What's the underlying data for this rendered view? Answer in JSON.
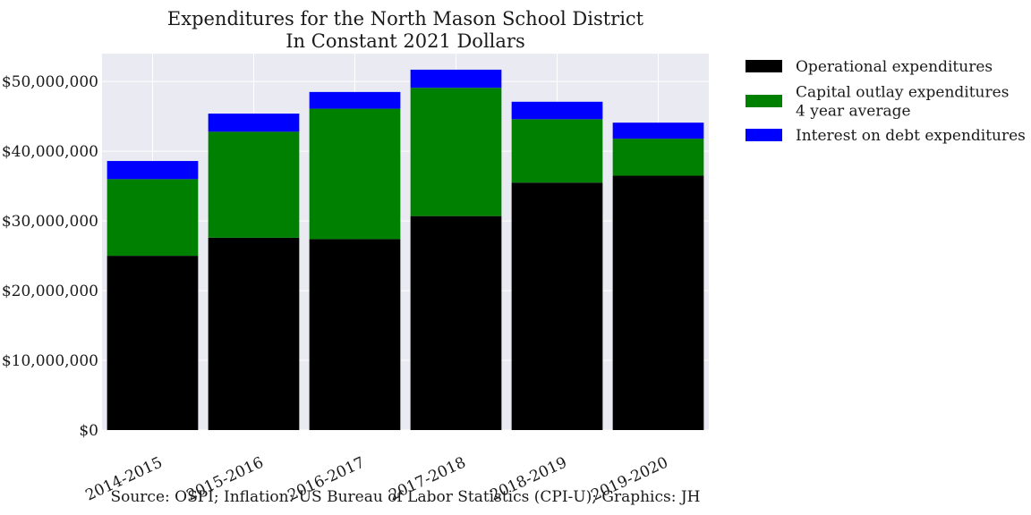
{
  "chart_data": {
    "type": "bar",
    "stacked": true,
    "title": "Expenditures for the North Mason School District",
    "subtitle": "In Constant 2021 Dollars",
    "xlabel": "",
    "ylabel": "",
    "categories": [
      "2014-2015",
      "2015-2016",
      "2016-2017",
      "2017-2018",
      "2018-2019",
      "2019-2020"
    ],
    "series": [
      {
        "name": "Operational expenditures",
        "color": "#000000",
        "values": [
          25000000,
          27600000,
          27400000,
          30700000,
          35500000,
          36500000
        ]
      },
      {
        "name_lines": [
          "Capital outlay expenditures",
          "4 year average"
        ],
        "color": "#008000",
        "values": [
          11000000,
          15200000,
          18700000,
          18400000,
          9100000,
          5300000
        ]
      },
      {
        "name": "Interest on debt expenditures",
        "color": "#0000ff",
        "values": [
          2600000,
          2600000,
          2400000,
          2600000,
          2500000,
          2300000
        ]
      }
    ],
    "ylim": [
      0,
      54000000
    ],
    "yticks": [
      0,
      10000000,
      20000000,
      30000000,
      40000000,
      50000000
    ],
    "ytick_labels": [
      "$0",
      "$10,000,000",
      "$20,000,000",
      "$30,000,000",
      "$40,000,000",
      "$50,000,000"
    ],
    "grid": true,
    "legend_position": "outside-right-top",
    "plot_background": "#eaeaf2",
    "source": "Source: OSPI; Inflation: US Bureau of Labor Statistics (CPI-U); Graphics: JH"
  }
}
